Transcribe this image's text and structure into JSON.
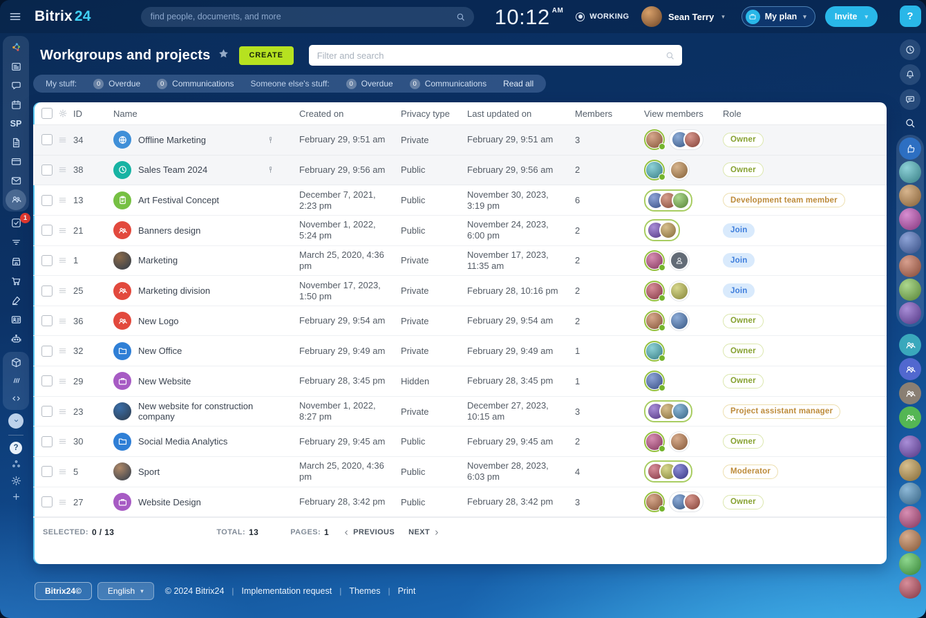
{
  "topbar": {
    "logo_primary": "Bitrix",
    "logo_accent": "24",
    "search_placeholder": "find people, documents, and more",
    "time": "10:12",
    "meridiem": "AM",
    "status": "WORKING",
    "user_name": "Sean Terry",
    "my_plan_label": "My plan",
    "invite_label": "Invite",
    "help_label": "?"
  },
  "left_rail": {
    "sp_label": "SP",
    "tasks_badge": "1",
    "items_top": [
      "network",
      "newsfeed",
      "messenger",
      "calendar",
      "sp",
      "documents",
      "crm",
      "mail",
      "workgroups"
    ],
    "items_mid": [
      "tasks",
      "flows",
      "market",
      "store",
      "sign",
      "hr",
      "copilot"
    ],
    "items_low": [
      "warehouse",
      "marketing",
      "developer"
    ],
    "items_bot": [
      "help",
      "structure",
      "settings",
      "add"
    ]
  },
  "right_rail": {
    "help_label": "?",
    "tools": [
      "time-manager",
      "notifications",
      "messenger"
    ],
    "search_icon": "search-icon",
    "panel_avatar_count": 8,
    "group_colors": [
      "#3aa8bc",
      "#5168cf",
      "#8a7f73",
      "#54b654"
    ],
    "lower_avatar_count": 7
  },
  "page": {
    "title": "Workgroups and projects",
    "create_label": "CREATE",
    "filter_placeholder": "Filter and search"
  },
  "counters": {
    "my_stuff_label": "My stuff:",
    "someone_label": "Someone else's stuff:",
    "read_all_label": "Read all",
    "my_items": [
      {
        "count": "0",
        "label": "Overdue"
      },
      {
        "count": "0",
        "label": "Communications"
      }
    ],
    "someone_items": [
      {
        "count": "0",
        "label": "Overdue"
      },
      {
        "count": "0",
        "label": "Communications"
      }
    ]
  },
  "table": {
    "columns": [
      "ID",
      "Name",
      "Created on",
      "Privacy type",
      "Last updated on",
      "Members",
      "View members",
      "Role"
    ],
    "rows": [
      {
        "id": "34",
        "name": "Offline Marketing",
        "icon": "globe",
        "color": "#3f8fd8",
        "pinned": true,
        "created": "February 29, 9:51 am",
        "privacy": "Private",
        "updated": "February 29, 9:51 am",
        "members": "3",
        "view": {
          "single": true,
          "pill": 2
        },
        "role": "Owner",
        "role_style": "owner"
      },
      {
        "id": "38",
        "name": "Sales Team 2024",
        "icon": "clock",
        "color": "#17b3a3",
        "pinned": true,
        "created": "February 29, 9:56 am",
        "privacy": "Public",
        "updated": "February 29, 9:56 am",
        "members": "2",
        "view": {
          "single": true,
          "pill": 1
        },
        "role": "Owner",
        "role_style": "owner"
      },
      {
        "id": "13",
        "name": "Art Festival Concept",
        "icon": "clipboard",
        "color": "#76c043",
        "pinned": false,
        "created": "December 7, 2021, 2:23 pm",
        "privacy": "Public",
        "updated": "November 30, 2023, 3:19 pm",
        "members": "6",
        "view": {
          "group": 3
        },
        "role": "Development team member",
        "role_style": "amber"
      },
      {
        "id": "21",
        "name": "Banners design",
        "icon": "people",
        "color": "#e2493d",
        "pinned": false,
        "created": "November 1, 2022, 5:24 pm",
        "privacy": "Public",
        "updated": "November 24, 2023, 6:00 pm",
        "members": "2",
        "view": {
          "group": 2
        },
        "role": "Join",
        "role_style": "join"
      },
      {
        "id": "1",
        "name": "Marketing",
        "icon": "photo",
        "color": "#8a6a4a",
        "pinned": false,
        "created": "March 25, 2020, 4:36 pm",
        "privacy": "Private",
        "updated": "November 17, 2023, 11:35 am",
        "members": "2",
        "view": {
          "single": true,
          "silhouette": true
        },
        "role": "Join",
        "role_style": "join"
      },
      {
        "id": "25",
        "name": "Marketing division",
        "icon": "people",
        "color": "#e2493d",
        "pinned": false,
        "created": "November 17, 2023, 1:50 pm",
        "privacy": "Private",
        "updated": "February 28, 10:16 pm",
        "members": "2",
        "view": {
          "single": true,
          "pill": 1
        },
        "role": "Join",
        "role_style": "join"
      },
      {
        "id": "36",
        "name": "New Logo",
        "icon": "people",
        "color": "#e2493d",
        "pinned": false,
        "created": "February 29, 9:54 am",
        "privacy": "Private",
        "updated": "February 29, 9:54 am",
        "members": "2",
        "view": {
          "single": true,
          "pill": 1
        },
        "role": "Owner",
        "role_style": "owner"
      },
      {
        "id": "32",
        "name": "New Office",
        "icon": "folder",
        "color": "#2f7fd6",
        "pinned": false,
        "created": "February 29, 9:49 am",
        "privacy": "Private",
        "updated": "February 29, 9:49 am",
        "members": "1",
        "view": {
          "single": true
        },
        "role": "Owner",
        "role_style": "owner"
      },
      {
        "id": "29",
        "name": "New Website",
        "icon": "briefcase",
        "color": "#a75bc4",
        "pinned": false,
        "created": "February 28, 3:45 pm",
        "privacy": "Hidden",
        "updated": "February 28, 3:45 pm",
        "members": "1",
        "view": {
          "single": true
        },
        "role": "Owner",
        "role_style": "owner"
      },
      {
        "id": "23",
        "name": "New website for construction company",
        "icon": "photo",
        "color": "#3a6ea8",
        "pinned": false,
        "created": "November 1, 2022, 8:27 pm",
        "privacy": "Private",
        "updated": "December 27, 2023, 10:15 am",
        "members": "3",
        "view": {
          "group": 3
        },
        "role": "Project assistant manager",
        "role_style": "amber"
      },
      {
        "id": "30",
        "name": "Social Media Analytics",
        "icon": "folder",
        "color": "#2f7fd6",
        "pinned": false,
        "created": "February 29, 9:45 am",
        "privacy": "Public",
        "updated": "February 29, 9:45 am",
        "members": "2",
        "view": {
          "single": true,
          "pill": 1
        },
        "role": "Owner",
        "role_style": "owner"
      },
      {
        "id": "5",
        "name": "Sport",
        "icon": "photo",
        "color": "#b08968",
        "pinned": false,
        "created": "March 25, 2020, 4:36 pm",
        "privacy": "Public",
        "updated": "November 28, 2023, 6:03 pm",
        "members": "4",
        "view": {
          "group": 3
        },
        "role": "Moderator",
        "role_style": "amber"
      },
      {
        "id": "27",
        "name": "Website Design",
        "icon": "briefcase",
        "color": "#a75bc4",
        "pinned": false,
        "created": "February 28, 3:42 pm",
        "privacy": "Public",
        "updated": "February 28, 3:42 pm",
        "members": "3",
        "view": {
          "single": true,
          "pill": 2
        },
        "role": "Owner",
        "role_style": "owner"
      }
    ]
  },
  "pagination": {
    "selected_label": "SELECTED:",
    "selected_value": "0 / 13",
    "total_label": "TOTAL:",
    "total_value": "13",
    "pages_label": "PAGES:",
    "pages_value": "1",
    "previous_label": "PREVIOUS",
    "next_label": "NEXT"
  },
  "footer": {
    "brand_label": "Bitrix24©",
    "language_label": "English",
    "copyright": "© 2024 Bitrix24",
    "links": [
      "Implementation request",
      "Themes",
      "Print"
    ]
  }
}
